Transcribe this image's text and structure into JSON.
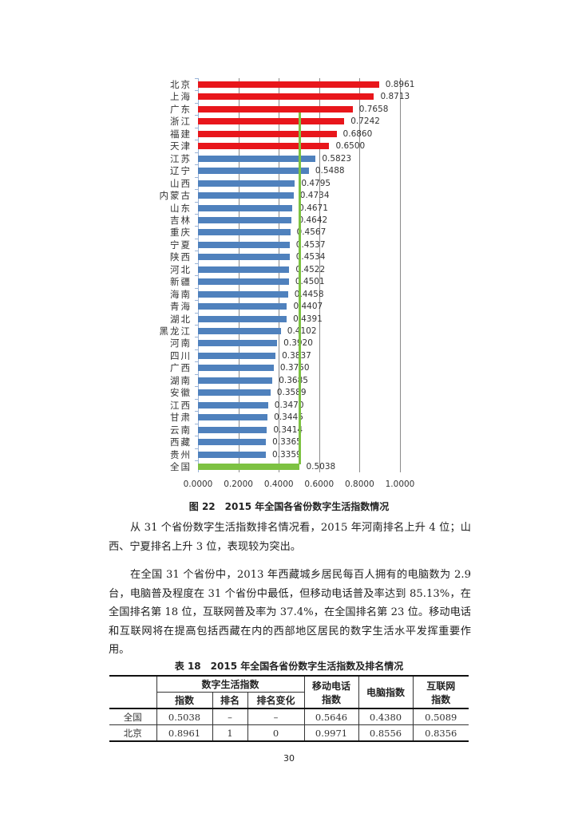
{
  "chart_data": {
    "type": "bar",
    "orientation": "horizontal",
    "title": "图 22  2015 年全国各省份数字生活指数情况",
    "xlabel": "",
    "ylabel": "",
    "xlim": [
      0,
      1.0
    ],
    "x_ticks": [
      "0.0000",
      "0.2000",
      "0.4000",
      "0.6000",
      "0.8000",
      "1.0000"
    ],
    "grid": true,
    "reference_line": {
      "label": "全国",
      "value": 0.5038,
      "color": "#7dc242"
    },
    "categories": [
      "北京",
      "上海",
      "广东",
      "浙江",
      "福建",
      "天津",
      "江苏",
      "辽宁",
      "山西",
      "内蒙古",
      "山东",
      "吉林",
      "重庆",
      "宁夏",
      "陕西",
      "河北",
      "新疆",
      "海南",
      "青海",
      "湖北",
      "黑龙江",
      "河南",
      "四川",
      "广西",
      "湖南",
      "安徽",
      "江西",
      "甘肃",
      "云南",
      "西藏",
      "贵州",
      "全国"
    ],
    "values": [
      0.8961,
      0.8713,
      0.7658,
      0.7242,
      0.686,
      0.65,
      0.5823,
      0.5488,
      0.4795,
      0.4734,
      0.4671,
      0.4642,
      0.4567,
      0.4537,
      0.4534,
      0.4522,
      0.4501,
      0.4458,
      0.4407,
      0.4391,
      0.4102,
      0.392,
      0.3837,
      0.375,
      0.3685,
      0.3589,
      0.347,
      0.3445,
      0.3414,
      0.3365,
      0.3359,
      0.5038
    ],
    "value_labels": [
      "0.8961",
      "0.8713",
      "0.7658",
      "0.7242",
      "0.6860",
      "0.6500",
      "0.5823",
      "0.5488",
      "0.4795",
      "0.4734",
      "0.4671",
      "0.4642",
      "0.4567",
      "0.4537",
      "0.4534",
      "0.4522",
      "0.4501",
      "0.4458",
      "0.4407",
      "0.4391",
      "0.4102",
      "0.3920",
      "0.3837",
      "0.3750",
      "0.3685",
      "0.3589",
      "0.3470",
      "0.3445",
      "0.3414",
      "0.3365",
      "0.3359",
      "0.5038"
    ],
    "colors": {
      "top": "#e8161b",
      "other": "#4f81bd",
      "national": "#7dc242"
    },
    "top_count": 6
  },
  "figure": {
    "caption": "图 22　2015 年全国各省份数字生活指数情况"
  },
  "body": {
    "paragraphs": [
      "从 31 个省份数字生活指数排名情况看，2015 年河南排名上升 4 位；山西、宁夏排名上升 3 位，表现较为突出。",
      "在全国 31 个省份中，2013 年西藏城乡居民每百人拥有的电脑数为 2.9 台，电脑普及程度在 31 个省份中最低，但移动电话普及率达到 85.13%，在全国排名第 18 位，互联网普及率为 37.4%，在全国排名第 23 位。移动电话和互联网将在提高包括西藏在内的西部地区居民的数字生活水平发挥重要作用。"
    ]
  },
  "table": {
    "caption": "表 18　2015 年全国各省份数字生活指数及排名情况",
    "group_header": "数字生活指数",
    "sub_headers": [
      "指数",
      "排名",
      "排名变化"
    ],
    "col_mobile": "移动电话指数",
    "col_mobile_l1": "移动电话",
    "col_mobile_l2": "指数",
    "col_pc": "电脑指数",
    "col_net_l1": "互联网",
    "col_net_l2": "指数",
    "rows": [
      {
        "region": "全国",
        "index": "0.5038",
        "rank": "–",
        "rank_change": "–",
        "mobile": "0.5646",
        "pc": "0.4380",
        "internet": "0.5089"
      },
      {
        "region": "北京",
        "index": "0.8961",
        "rank": "1",
        "rank_change": "0",
        "mobile": "0.9971",
        "pc": "0.8556",
        "internet": "0.8356"
      }
    ]
  },
  "page_number": "30"
}
